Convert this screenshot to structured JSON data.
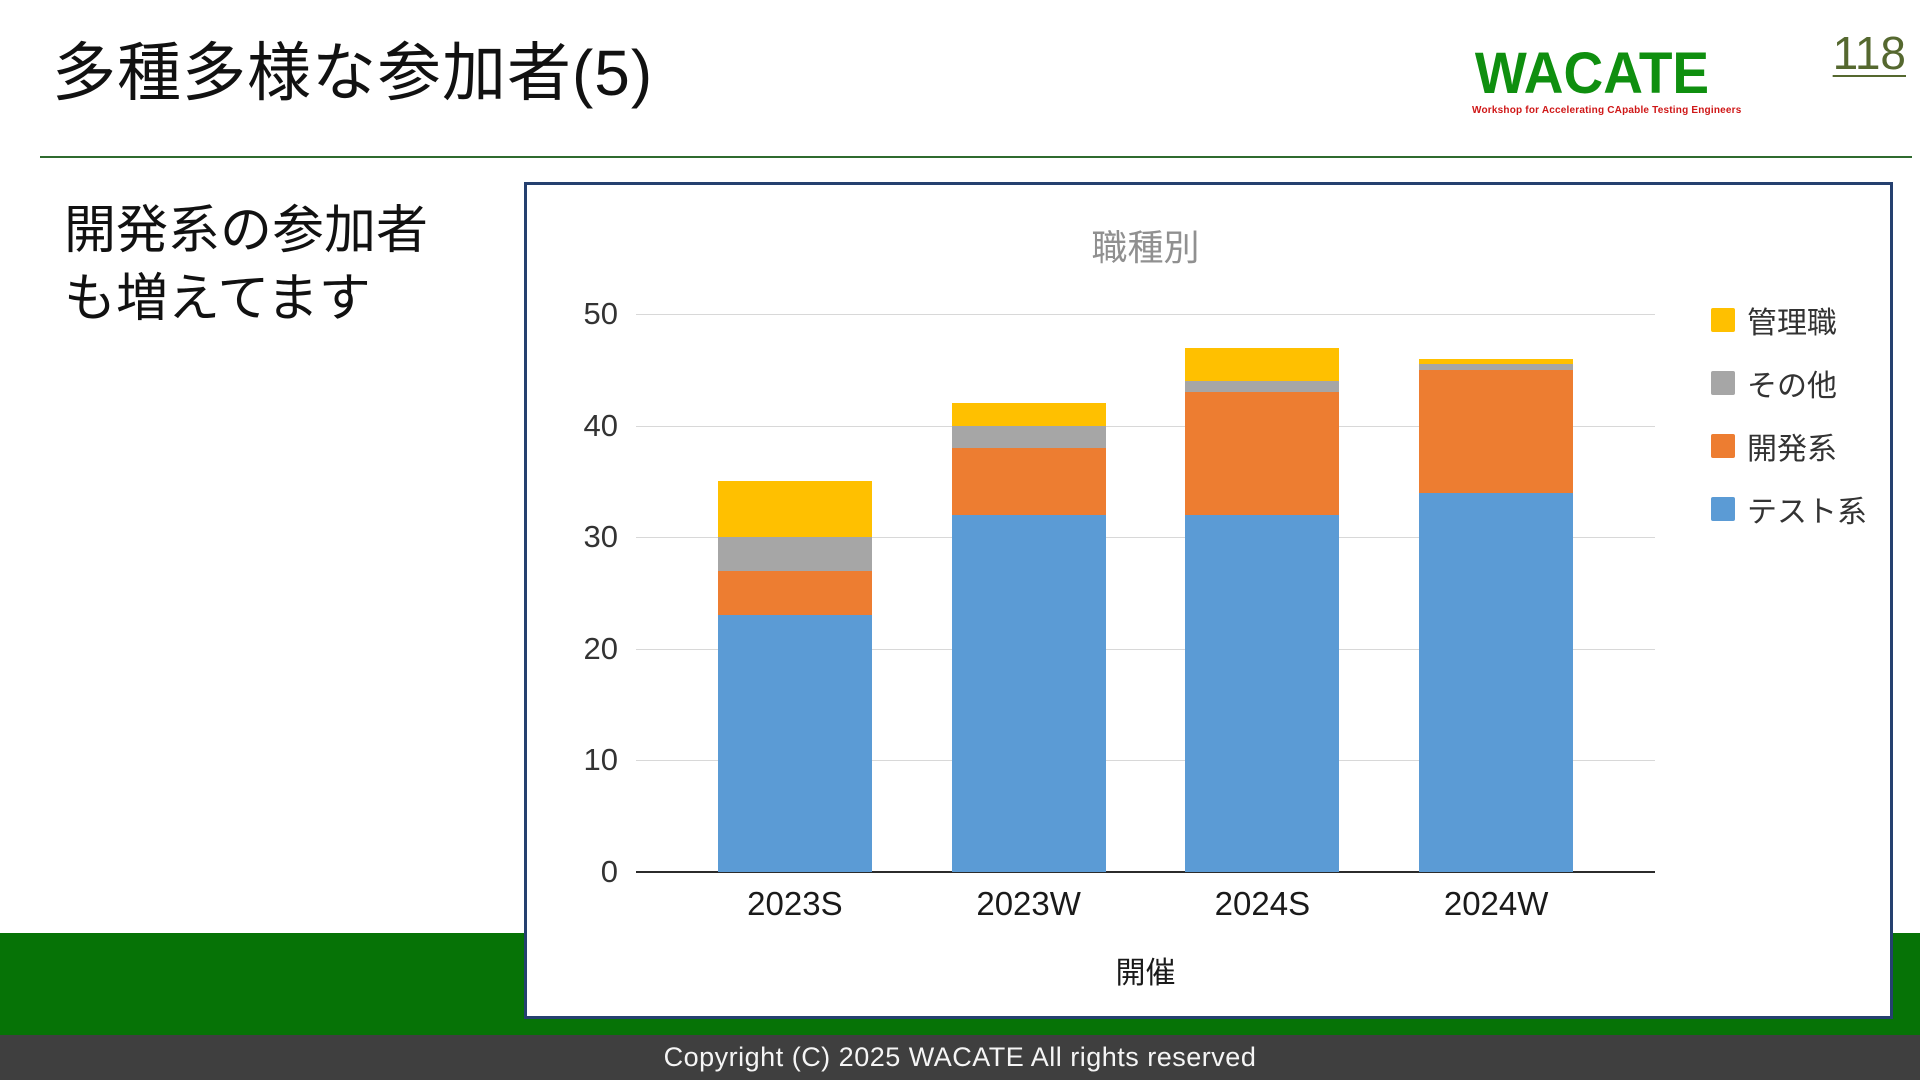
{
  "slide": {
    "title": "多種多様な参加者(5)",
    "page_number": "118",
    "body_text": [
      "開発系の参加者",
      "も増えてます"
    ],
    "footer": "Copyright (C) 2025 WACATE All rights reserved"
  },
  "logo": {
    "text": "WACATE",
    "tagline": "Workshop for Accelerating CApable Testing Engineers"
  },
  "colors": {
    "band_green": "#067306",
    "footer_bg": "#3f3f3f",
    "panel_border_navy": "#25406f",
    "logo_green": "#0f8f0f",
    "page_number_green": "#55682f",
    "gridline": "#d8d8d8"
  },
  "chart_data": {
    "type": "bar",
    "stacked": true,
    "title": "職種別",
    "xlabel": "開催",
    "ylabel": "",
    "categories": [
      "2023S",
      "2023W",
      "2024S",
      "2024W"
    ],
    "series": [
      {
        "name": "テスト系",
        "color": "#5B9BD5",
        "values": [
          23,
          32,
          32,
          34
        ]
      },
      {
        "name": "開発系",
        "color": "#ED7D31",
        "values": [
          4,
          6,
          11,
          11
        ]
      },
      {
        "name": "その他",
        "color": "#A6A6A6",
        "values": [
          3,
          2,
          1,
          0.5
        ]
      },
      {
        "name": "管理職",
        "color": "#FFC000",
        "values": [
          5,
          2,
          3,
          0.5
        ]
      }
    ],
    "series_order": "bottom-to-top",
    "totals": [
      35,
      42,
      47,
      46
    ],
    "ylim": [
      0,
      50
    ],
    "yticks": [
      0,
      10,
      20,
      30,
      40,
      50
    ],
    "grid": true,
    "legend_position": "right",
    "legend_order_top_to_bottom": [
      "管理職",
      "その他",
      "開発系",
      "テスト系"
    ]
  }
}
